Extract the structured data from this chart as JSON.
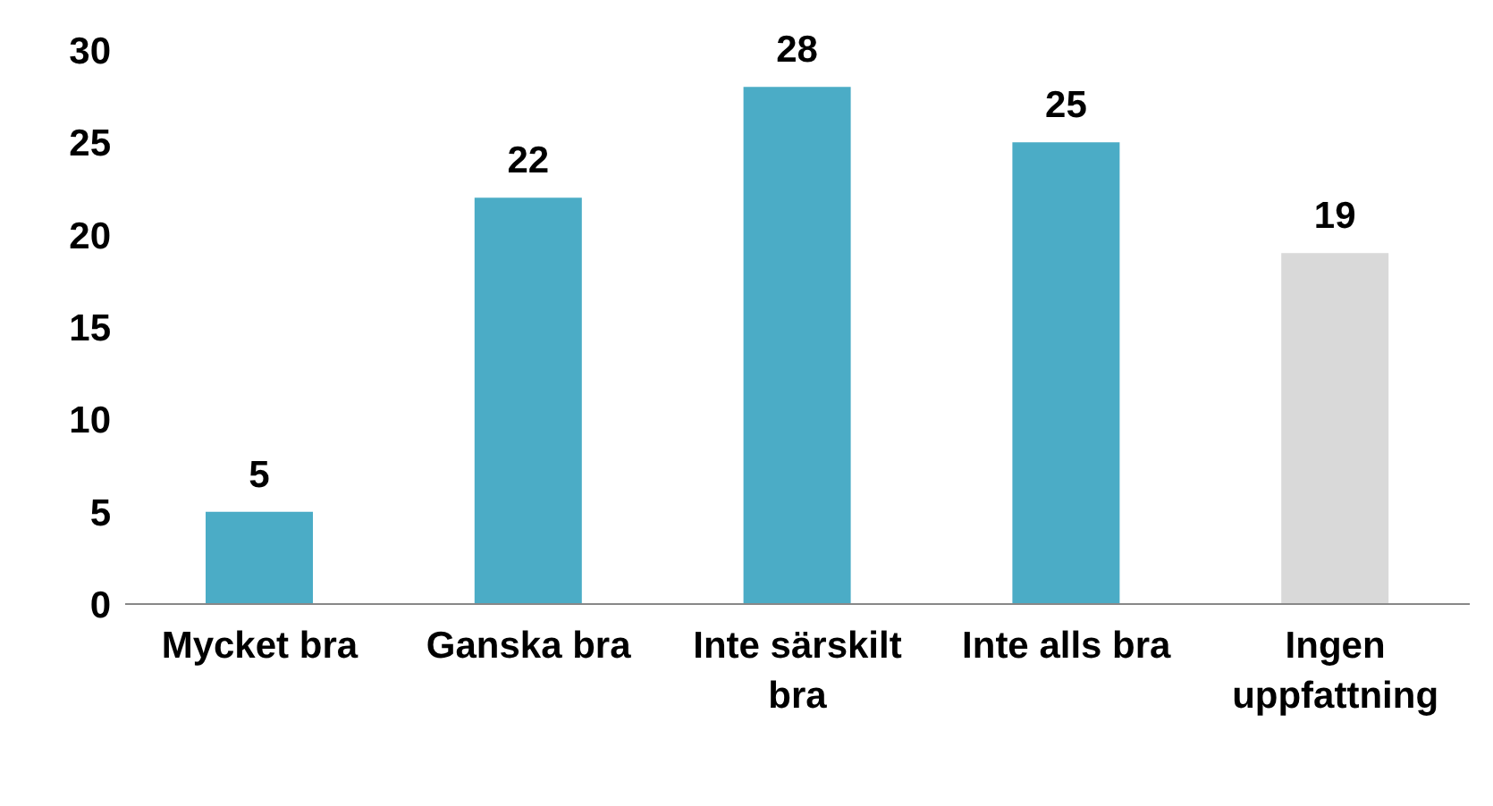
{
  "chart_data": {
    "type": "bar",
    "categories": [
      "Mycket bra",
      "Ganska bra",
      "Inte särskilt bra",
      "Inte alls bra",
      "Ingen uppfattning"
    ],
    "values": [
      5,
      22,
      28,
      25,
      19
    ],
    "colors": [
      "#4bacc6",
      "#4bacc6",
      "#4bacc6",
      "#4bacc6",
      "#d9d9d9"
    ],
    "ylim": [
      0,
      30
    ],
    "yticks": [
      0,
      5,
      10,
      15,
      20,
      25,
      30
    ],
    "grid": false,
    "legend": false,
    "data_labels": true
  }
}
